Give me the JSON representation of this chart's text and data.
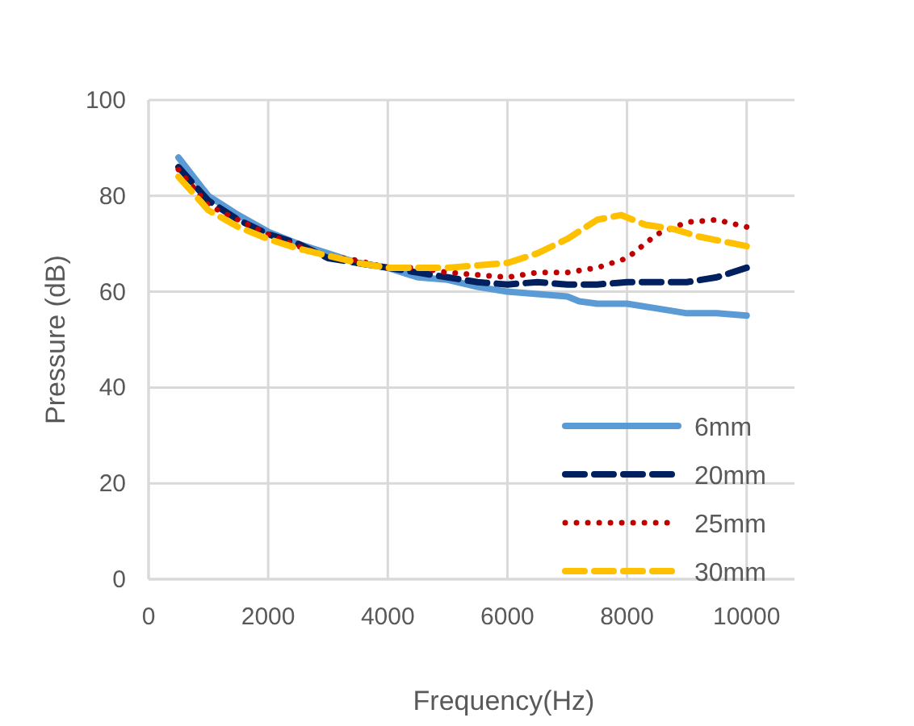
{
  "chart_data": {
    "type": "line",
    "xlabel": "Frequency(Hz)",
    "ylabel": "Pressure (dB)",
    "xlim": [
      0,
      10800
    ],
    "xticks": [
      0,
      2000,
      4000,
      6000,
      8000,
      10000
    ],
    "ylim": [
      0,
      100
    ],
    "yticks": [
      0,
      20,
      40,
      60,
      80,
      100
    ],
    "grid": true,
    "legend": "bottom right",
    "marker": "none",
    "series": [
      {
        "name": "6mm",
        "color": "#5b9bd5",
        "line_style": "solid",
        "x": [
          500,
          1000,
          1500,
          2000,
          2500,
          3000,
          3500,
          4000,
          4500,
          5000,
          5500,
          6000,
          6500,
          7000,
          7200,
          7500,
          8000,
          8500,
          9000,
          9500,
          10000
        ],
        "values": [
          88,
          80,
          76,
          72.5,
          70,
          68,
          66,
          65,
          63,
          62.5,
          61,
          60,
          59.5,
          59,
          58,
          57.5,
          57.5,
          56.5,
          55.5,
          55.5,
          55
        ]
      },
      {
        "name": "20mm",
        "color": "#002060",
        "line_style": "dashed",
        "x": [
          500,
          1000,
          1500,
          2000,
          2500,
          3000,
          3500,
          4000,
          4500,
          5000,
          5500,
          6000,
          6500,
          7000,
          7500,
          8000,
          8500,
          9000,
          9500,
          10000
        ],
        "values": [
          86,
          79,
          75,
          72,
          70,
          67,
          66,
          65,
          64,
          63,
          62,
          61.5,
          62,
          61.5,
          61.5,
          62,
          62,
          62,
          63,
          65
        ]
      },
      {
        "name": "25mm",
        "color": "#c00000",
        "line_style": "dotted",
        "x": [
          500,
          1000,
          1500,
          2000,
          2500,
          3000,
          3500,
          4000,
          4500,
          5000,
          5500,
          6000,
          6500,
          7000,
          7500,
          8000,
          8500,
          9000,
          9500,
          10000
        ],
        "values": [
          85.5,
          78,
          75,
          72,
          69.5,
          67.5,
          66.5,
          65,
          65,
          64,
          63.5,
          63,
          64,
          64,
          65,
          67,
          72,
          74.5,
          75,
          73.5
        ]
      },
      {
        "name": "30mm",
        "color": "#ffc000",
        "line_style": "dashed",
        "x": [
          500,
          1000,
          1500,
          2000,
          2500,
          3000,
          3500,
          4000,
          4500,
          5000,
          5500,
          6000,
          6500,
          7000,
          7500,
          7900,
          8300,
          8800,
          9200,
          9800,
          10000
        ],
        "values": [
          84,
          77,
          73.5,
          71,
          69,
          67.5,
          66,
          65,
          65,
          65,
          65.5,
          66,
          68,
          71,
          75,
          76,
          74,
          73,
          71.5,
          70,
          69.5
        ]
      }
    ]
  }
}
